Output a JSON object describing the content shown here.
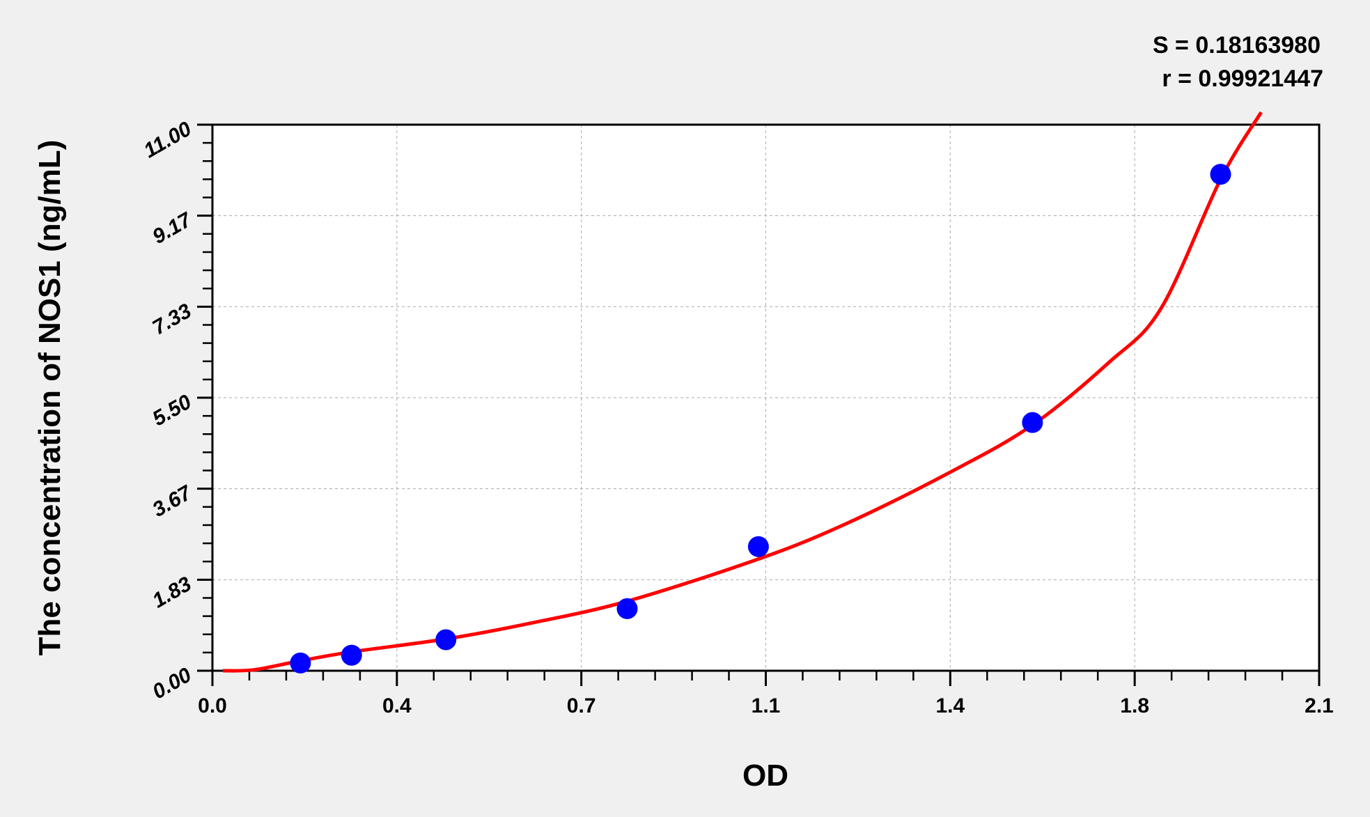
{
  "chart_data": {
    "type": "scatter",
    "title": "",
    "xlabel": "OD",
    "ylabel": "The concentration of  NOS1 (ng/mL)",
    "xlim": [
      0,
      2.1
    ],
    "ylim": [
      0,
      11
    ],
    "x_ticks": [
      "0.0",
      "0.4",
      "0.7",
      "1.1",
      "1.4",
      "1.8",
      "2.1"
    ],
    "x_tick_values": [
      0,
      0.35,
      0.7,
      1.05,
      1.4,
      1.75,
      2.1
    ],
    "y_ticks": [
      "0.00",
      "1.83",
      "3.67",
      "5.50",
      "7.33",
      "9.17",
      "11.00"
    ],
    "y_tick_values": [
      0,
      1.833,
      3.667,
      5.5,
      7.333,
      9.167,
      11
    ],
    "grid": true,
    "points": {
      "x": [
        0.167,
        0.264,
        0.443,
        0.787,
        1.036,
        1.556,
        1.913
      ],
      "y": [
        0.156,
        0.312,
        0.625,
        1.25,
        2.5,
        5.0,
        10.0
      ],
      "color": "#0000ff"
    },
    "fit_curve": {
      "x": [
        0.02,
        0.08,
        0.167,
        0.264,
        0.443,
        0.6,
        0.787,
        1.036,
        1.2,
        1.4,
        1.556,
        1.7,
        1.8,
        1.913,
        1.99
      ],
      "y": [
        0.0,
        0.02,
        0.2,
        0.38,
        0.64,
        0.95,
        1.4,
        2.25,
        2.95,
        4.0,
        4.95,
        6.2,
        7.3,
        9.9,
        11.25
      ],
      "color": "#ff0000"
    },
    "annotations": [
      "S = 0.18163980",
      "r = 0.99921447"
    ]
  }
}
